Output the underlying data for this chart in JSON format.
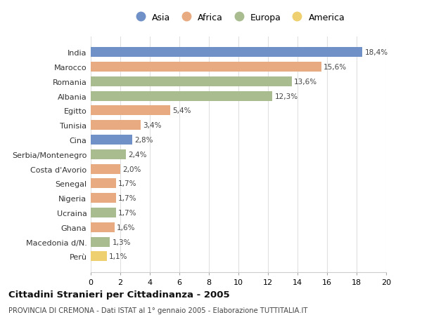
{
  "categories": [
    "India",
    "Marocco",
    "Romania",
    "Albania",
    "Egitto",
    "Tunisia",
    "Cina",
    "Serbia/Montenegro",
    "Costa d'Avorio",
    "Senegal",
    "Nigeria",
    "Ucraina",
    "Ghana",
    "Macedonia d/N.",
    "Perù"
  ],
  "values": [
    18.4,
    15.6,
    13.6,
    12.3,
    5.4,
    3.4,
    2.8,
    2.4,
    2.0,
    1.7,
    1.7,
    1.7,
    1.6,
    1.3,
    1.1
  ],
  "labels": [
    "18,4%",
    "15,6%",
    "13,6%",
    "12,3%",
    "5,4%",
    "3,4%",
    "2,8%",
    "2,4%",
    "2,0%",
    "1,7%",
    "1,7%",
    "1,7%",
    "1,6%",
    "1,3%",
    "1,1%"
  ],
  "continents": [
    "Asia",
    "Africa",
    "Europa",
    "Europa",
    "Africa",
    "Africa",
    "Asia",
    "Europa",
    "Africa",
    "Africa",
    "Africa",
    "Europa",
    "Africa",
    "Europa",
    "America"
  ],
  "colors": {
    "Asia": "#7090C8",
    "Africa": "#E8AA80",
    "Europa": "#A8BC90",
    "America": "#EED070"
  },
  "legend_order": [
    "Asia",
    "Africa",
    "Europa",
    "America"
  ],
  "title": "Cittadini Stranieri per Cittadinanza - 2005",
  "subtitle": "PROVINCIA DI CREMONA - Dati ISTAT al 1° gennaio 2005 - Elaborazione TUTTITALIA.IT",
  "xlim": [
    0,
    20
  ],
  "xticks": [
    0,
    2,
    4,
    6,
    8,
    10,
    12,
    14,
    16,
    18,
    20
  ],
  "background_color": "#ffffff",
  "grid_color": "#e0e0e0"
}
